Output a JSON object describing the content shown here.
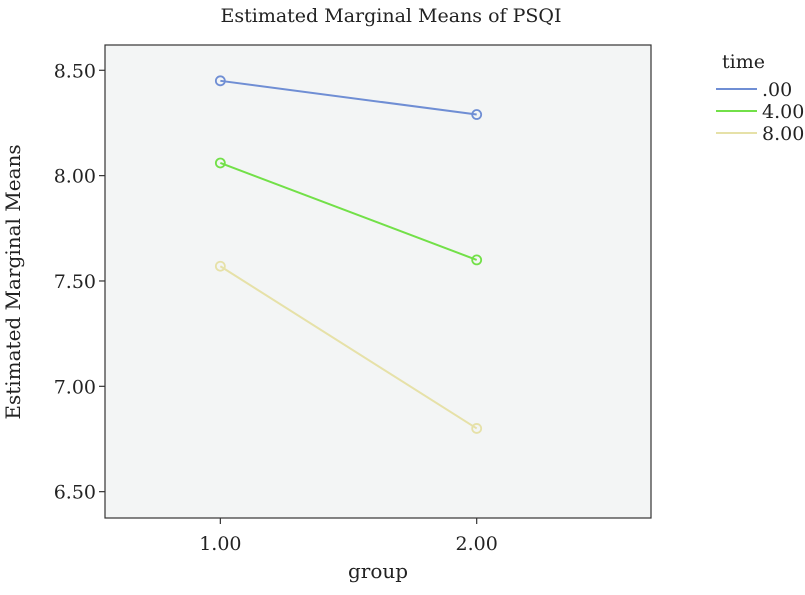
{
  "chart_data": {
    "type": "line",
    "title": "Estimated Marginal Means of PSQI",
    "xlabel": "group",
    "ylabel": "Estimated Marginal Means",
    "x": [
      1.0,
      2.0
    ],
    "x_tick_labels": [
      "1.00",
      "2.00"
    ],
    "xlim": [
      0.55,
      2.68
    ],
    "ylim": [
      6.375,
      8.62
    ],
    "y_ticks": [
      6.5,
      7.0,
      7.5,
      8.0,
      8.5
    ],
    "y_tick_labels": [
      "6.50",
      "7.00",
      "7.50",
      "8.00",
      "8.50"
    ],
    "grid": false,
    "legend_title": "time",
    "legend_position": "right",
    "series": [
      {
        "name": ".00",
        "values": [
          8.45,
          8.29
        ],
        "color": "#6f8ed4"
      },
      {
        "name": "4.00",
        "values": [
          8.06,
          7.6
        ],
        "color": "#72e048"
      },
      {
        "name": "8.00",
        "values": [
          7.57,
          6.8
        ],
        "color": "#e6e1a8"
      }
    ],
    "plot_background": "#f3f5f5"
  }
}
